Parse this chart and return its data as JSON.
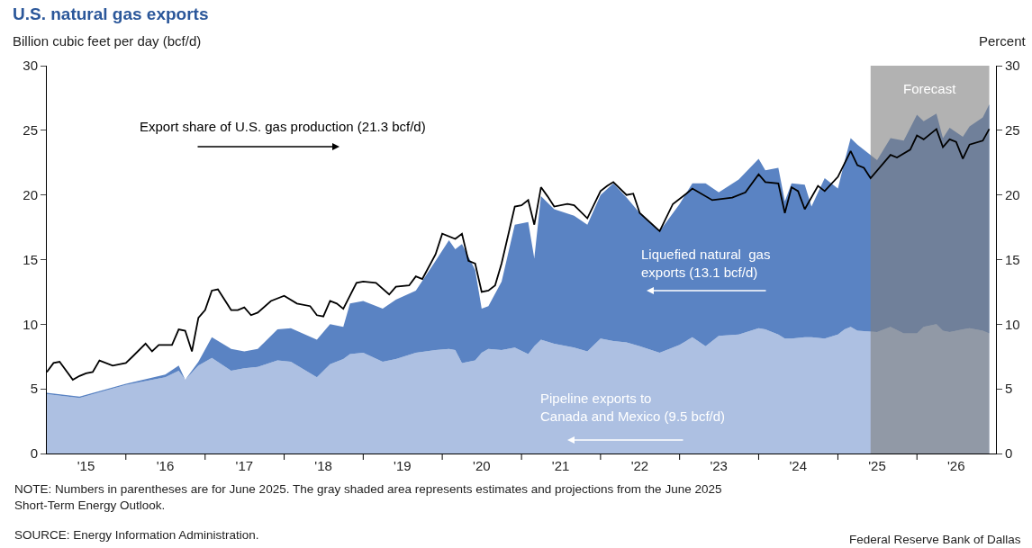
{
  "chart_data": {
    "type": "area",
    "stacked": true,
    "title": "U.S. natural gas exports",
    "ylabel": "Billion cubic feet per day (bcf/d)",
    "y2label": "Percent",
    "x": [
      "2015-01",
      "2015-06",
      "2016-01",
      "2016-07",
      "2016-09",
      "2016-10",
      "2016-12",
      "2017-02",
      "2017-05",
      "2017-07",
      "2017-09",
      "2017-12",
      "2018-02",
      "2018-06",
      "2018-08",
      "2018-10",
      "2018-11",
      "2019-01",
      "2019-04",
      "2019-06",
      "2019-09",
      "2019-12",
      "2020-02",
      "2020-03",
      "2020-04",
      "2020-06",
      "2020-07",
      "2020-08",
      "2020-10",
      "2020-12",
      "2021-02",
      "2021-03",
      "2021-04",
      "2021-06",
      "2021-09",
      "2021-11",
      "2022-01",
      "2022-03",
      "2022-05",
      "2022-07",
      "2022-10",
      "2023-01",
      "2023-03",
      "2023-05",
      "2023-07",
      "2023-10",
      "2024-01",
      "2024-02",
      "2024-04",
      "2024-05",
      "2024-06",
      "2024-08",
      "2024-09",
      "2024-11",
      "2025-01",
      "2025-02",
      "2025-03",
      "2025-04",
      "2025-07",
      "2025-09",
      "2025-11",
      "2026-01",
      "2026-02",
      "2026-04",
      "2026-05",
      "2026-06",
      "2026-08",
      "2026-09",
      "2026-11",
      "2026-12"
    ],
    "series": [
      {
        "name": "Pipeline exports to\nCanada and Mexico (9.5 bcf/d)",
        "color": "#adc0e2",
        "values": [
          4.6,
          4.3,
          5.3,
          5.9,
          6.4,
          5.7,
          6.8,
          7.4,
          6.4,
          6.6,
          6.7,
          7.2,
          7.1,
          5.9,
          6.9,
          7.3,
          7.7,
          7.8,
          7.1,
          7.3,
          7.8,
          8.0,
          8.1,
          8.0,
          7.0,
          7.2,
          7.8,
          8.1,
          8.0,
          8.2,
          7.7,
          8.3,
          8.8,
          8.5,
          8.2,
          7.9,
          8.9,
          8.7,
          8.6,
          8.3,
          7.8,
          8.4,
          9.0,
          8.3,
          9.1,
          9.2,
          9.7,
          9.6,
          9.2,
          8.9,
          8.9,
          9.0,
          9.0,
          8.9,
          9.2,
          9.6,
          9.8,
          9.5,
          9.4,
          9.8,
          9.3,
          9.3,
          9.8,
          10.0,
          9.5,
          9.4,
          9.6,
          9.7,
          9.5,
          9.3
        ]
      },
      {
        "name": "Liquefied natural  gas\nexports (13.1 bcf/d)",
        "color": "#5a83c3",
        "values": [
          0.1,
          0.1,
          0.1,
          0.2,
          0.4,
          0.0,
          0.3,
          1.6,
          1.7,
          1.3,
          1.4,
          2.4,
          2.6,
          2.9,
          3.1,
          2.5,
          3.9,
          4.0,
          4.1,
          4.6,
          4.8,
          6.9,
          8.4,
          7.8,
          9.2,
          7.0,
          3.4,
          3.3,
          5.3,
          9.5,
          10.2,
          6.8,
          11.1,
          10.4,
          10.2,
          9.8,
          11.1,
          12.2,
          11.2,
          10.3,
          9.4,
          10.9,
          11.9,
          12.6,
          11.1,
          12.0,
          13.1,
          12.3,
          12.9,
          10.6,
          12.0,
          11.8,
          10.1,
          12.4,
          11.3,
          13.0,
          14.6,
          14.4,
          13.3,
          14.6,
          14.9,
          16.9,
          15.9,
          16.3,
          14.9,
          15.8,
          14.9,
          15.6,
          16.5,
          17.7
        ]
      },
      {
        "name": "Export share of U.S. gas production (21.3 bcf/d)",
        "type": "line",
        "axis": "y2",
        "color": "#000000",
        "x": [
          "2015-01",
          "2015-02",
          "2015-03",
          "2015-05",
          "2015-06",
          "2015-07",
          "2015-08",
          "2015-09",
          "2015-11",
          "2016-01",
          "2016-02",
          "2016-04",
          "2016-05",
          "2016-06",
          "2016-08",
          "2016-09",
          "2016-10",
          "2016-11",
          "2016-12",
          "2017-01",
          "2017-02",
          "2017-03",
          "2017-05",
          "2017-06",
          "2017-07",
          "2017-08",
          "2017-09",
          "2017-11",
          "2018-01",
          "2018-03",
          "2018-05",
          "2018-06",
          "2018-07",
          "2018-08",
          "2018-09",
          "2018-10",
          "2018-12",
          "2019-01",
          "2019-03",
          "2019-05",
          "2019-06",
          "2019-08",
          "2019-09",
          "2019-10",
          "2019-12",
          "2020-01",
          "2020-03",
          "2020-04",
          "2020-05",
          "2020-06",
          "2020-07",
          "2020-08",
          "2020-09",
          "2020-10",
          "2020-12",
          "2021-01",
          "2021-02",
          "2021-03",
          "2021-04",
          "2021-05",
          "2021-06",
          "2021-08",
          "2021-09",
          "2021-11",
          "2022-01",
          "2022-02",
          "2022-03",
          "2022-05",
          "2022-06",
          "2022-07",
          "2022-10",
          "2022-12",
          "2023-02",
          "2023-03",
          "2023-06",
          "2023-09",
          "2023-11",
          "2024-01",
          "2024-02",
          "2024-04",
          "2024-05",
          "2024-06",
          "2024-07",
          "2024-08",
          "2024-10",
          "2024-11",
          "2025-01",
          "2025-03",
          "2025-04",
          "2025-05",
          "2025-06",
          "2025-09",
          "2025-10",
          "2025-12",
          "2026-01",
          "2026-02",
          "2026-04",
          "2026-05",
          "2026-06",
          "2026-07",
          "2026-08",
          "2026-09",
          "2026-11",
          "2026-12"
        ],
        "values": [
          6.3,
          7.0,
          7.1,
          5.7,
          6.0,
          6.2,
          6.3,
          7.2,
          6.8,
          7.0,
          7.5,
          8.5,
          7.9,
          8.4,
          8.4,
          9.6,
          9.5,
          7.9,
          10.5,
          11.1,
          12.6,
          12.7,
          11.1,
          11.1,
          11.3,
          10.7,
          10.9,
          11.8,
          12.2,
          11.6,
          11.4,
          10.7,
          10.6,
          11.8,
          11.6,
          11.2,
          13.2,
          13.3,
          13.2,
          12.3,
          12.9,
          13.0,
          13.7,
          13.5,
          15.4,
          17.0,
          16.6,
          17.0,
          14.9,
          14.7,
          12.5,
          12.6,
          13.0,
          14.7,
          19.1,
          19.2,
          19.6,
          17.7,
          20.6,
          19.9,
          19.1,
          19.3,
          19.2,
          18.2,
          20.3,
          20.7,
          21.0,
          20.0,
          20.1,
          18.6,
          17.2,
          19.3,
          20.1,
          20.5,
          19.6,
          19.8,
          20.2,
          21.6,
          21.0,
          20.9,
          18.6,
          20.6,
          20.3,
          18.9,
          20.7,
          20.3,
          21.4,
          23.4,
          22.3,
          22.1,
          21.3,
          23.1,
          22.9,
          23.5,
          24.6,
          24.3,
          25.1,
          23.7,
          24.3,
          24.1,
          22.8,
          23.9,
          24.2,
          25.1
        ]
      }
    ],
    "xlim": [
      "2015-01",
      "2027-01"
    ],
    "xticks": [
      {
        "value": "2015-07",
        "label": "'15"
      },
      {
        "value": "2016-07",
        "label": "'16"
      },
      {
        "value": "2017-07",
        "label": "'17"
      },
      {
        "value": "2018-07",
        "label": "'18"
      },
      {
        "value": "2019-07",
        "label": "'19"
      },
      {
        "value": "2020-07",
        "label": "'20"
      },
      {
        "value": "2021-07",
        "label": "'21"
      },
      {
        "value": "2022-07",
        "label": "'22"
      },
      {
        "value": "2023-07",
        "label": "'23"
      },
      {
        "value": "2024-07",
        "label": "'24"
      },
      {
        "value": "2025-07",
        "label": "'25"
      },
      {
        "value": "2026-07",
        "label": "'26"
      },
      {
        "value": "2016-01",
        "label": null
      },
      {
        "value": "2017-01",
        "label": null
      },
      {
        "value": "2018-01",
        "label": null
      },
      {
        "value": "2019-01",
        "label": null
      },
      {
        "value": "2020-01",
        "label": null
      },
      {
        "value": "2021-01",
        "label": null
      },
      {
        "value": "2022-01",
        "label": null
      },
      {
        "value": "2023-01",
        "label": null
      },
      {
        "value": "2024-01",
        "label": null
      },
      {
        "value": "2025-01",
        "label": null
      },
      {
        "value": "2026-01",
        "label": null
      }
    ],
    "ylim": [
      0,
      30
    ],
    "yticks": [
      0,
      5,
      10,
      15,
      20,
      25,
      30
    ],
    "y2lim": [
      0,
      30
    ],
    "y2ticks": [
      0,
      5,
      10,
      15,
      20,
      25,
      30
    ],
    "bands": [
      {
        "axis": "x",
        "from": "2025-06",
        "to": "2026-12",
        "label": "Forecast",
        "color": "#7f7f7f"
      }
    ],
    "annotations": [
      "NOTE: Numbers in parentheses are for June 2025. The gray shaded area represents estimates and projections from the June 2025 Short-Term Energy Outlook.",
      "SOURCE: Energy Information Administration.",
      "Federal Reserve Bank of Dallas"
    ]
  }
}
